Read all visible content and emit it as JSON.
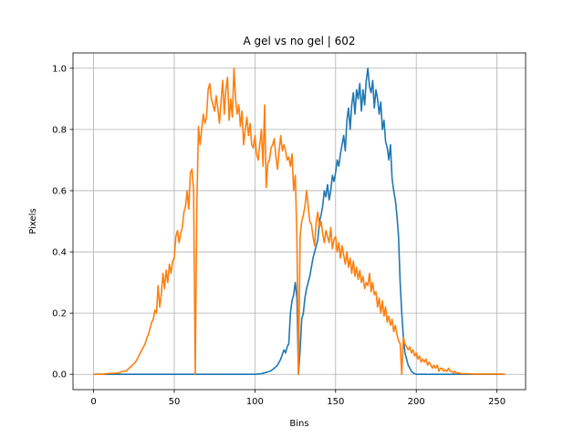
{
  "chart_data": {
    "type": "line",
    "title": "A gel vs no gel | 602",
    "xlabel": "Bins",
    "ylabel": "Pixels",
    "xlim": [
      -12.75,
      267.75
    ],
    "ylim": [
      -0.05,
      1.05
    ],
    "xticks": [
      0,
      50,
      100,
      150,
      200,
      250
    ],
    "yticks": [
      0.0,
      0.2,
      0.4,
      0.6,
      0.8,
      1.0
    ],
    "xtick_labels": [
      "0",
      "50",
      "100",
      "150",
      "200",
      "250"
    ],
    "ytick_labels": [
      "0.0",
      "0.2",
      "0.4",
      "0.6",
      "0.8",
      "1.0"
    ],
    "grid": true,
    "series": [
      {
        "color": "#1f77b4",
        "points": [
          [
            0,
            0
          ],
          [
            100,
            0
          ],
          [
            104,
            0.002
          ],
          [
            106,
            0.005
          ],
          [
            108,
            0.008
          ],
          [
            110,
            0.012
          ],
          [
            112,
            0.02
          ],
          [
            114,
            0.03
          ],
          [
            116,
            0.05
          ],
          [
            118,
            0.08
          ],
          [
            119,
            0.07
          ],
          [
            120,
            0.09
          ],
          [
            121,
            0.1
          ],
          [
            122,
            0.2
          ],
          [
            123,
            0.24
          ],
          [
            124,
            0.26
          ],
          [
            125,
            0.3
          ],
          [
            126,
            0.25
          ],
          [
            127,
            0.0
          ],
          [
            128,
            0.08
          ],
          [
            129,
            0.18
          ],
          [
            130,
            0.2
          ],
          [
            131,
            0.25
          ],
          [
            132,
            0.28
          ],
          [
            133,
            0.3
          ],
          [
            134,
            0.32
          ],
          [
            135,
            0.35
          ],
          [
            136,
            0.38
          ],
          [
            137,
            0.4
          ],
          [
            138,
            0.42
          ],
          [
            139,
            0.44
          ],
          [
            140,
            0.5
          ],
          [
            141,
            0.52
          ],
          [
            142,
            0.55
          ],
          [
            143,
            0.6
          ],
          [
            144,
            0.58
          ],
          [
            145,
            0.62
          ],
          [
            146,
            0.57
          ],
          [
            147,
            0.6
          ],
          [
            148,
            0.65
          ],
          [
            149,
            0.63
          ],
          [
            150,
            0.66
          ],
          [
            151,
            0.7
          ],
          [
            152,
            0.68
          ],
          [
            153,
            0.72
          ],
          [
            154,
            0.75
          ],
          [
            155,
            0.78
          ],
          [
            156,
            0.73
          ],
          [
            157,
            0.83
          ],
          [
            158,
            0.87
          ],
          [
            159,
            0.8
          ],
          [
            160,
            0.88
          ],
          [
            161,
            0.92
          ],
          [
            162,
            0.85
          ],
          [
            163,
            0.93
          ],
          [
            164,
            0.9
          ],
          [
            165,
            0.95
          ],
          [
            166,
            0.86
          ],
          [
            167,
            0.93
          ],
          [
            168,
            0.88
          ],
          [
            169,
            0.96
          ],
          [
            170,
            1.0
          ],
          [
            171,
            0.94
          ],
          [
            172,
            0.92
          ],
          [
            173,
            0.96
          ],
          [
            174,
            0.87
          ],
          [
            175,
            0.93
          ],
          [
            176,
            0.9
          ],
          [
            177,
            0.85
          ],
          [
            178,
            0.89
          ],
          [
            179,
            0.8
          ],
          [
            180,
            0.83
          ],
          [
            181,
            0.76
          ],
          [
            182,
            0.74
          ],
          [
            183,
            0.7
          ],
          [
            184,
            0.75
          ],
          [
            185,
            0.64
          ],
          [
            186,
            0.6
          ],
          [
            187,
            0.57
          ],
          [
            188,
            0.52
          ],
          [
            189,
            0.45
          ],
          [
            190,
            0.3
          ],
          [
            191,
            0.2
          ],
          [
            192,
            0.12
          ],
          [
            193,
            0.07
          ],
          [
            194,
            0.05
          ],
          [
            195,
            0.03
          ],
          [
            196,
            0.02
          ],
          [
            197,
            0.01
          ],
          [
            198,
            0.005
          ],
          [
            200,
            0
          ],
          [
            255,
            0
          ]
        ]
      },
      {
        "color": "#ff7f0e",
        "points": [
          [
            0,
            0
          ],
          [
            5,
            0
          ],
          [
            8,
            0.002
          ],
          [
            10,
            0.003
          ],
          [
            12,
            0.003
          ],
          [
            14,
            0.004
          ],
          [
            16,
            0.005
          ],
          [
            18,
            0.01
          ],
          [
            20,
            0.01
          ],
          [
            22,
            0.02
          ],
          [
            24,
            0.03
          ],
          [
            26,
            0.04
          ],
          [
            27,
            0.05
          ],
          [
            28,
            0.06
          ],
          [
            29,
            0.07
          ],
          [
            30,
            0.08
          ],
          [
            31,
            0.09
          ],
          [
            32,
            0.1
          ],
          [
            33,
            0.12
          ],
          [
            34,
            0.13
          ],
          [
            35,
            0.15
          ],
          [
            36,
            0.17
          ],
          [
            37,
            0.18
          ],
          [
            38,
            0.21
          ],
          [
            39,
            0.2
          ],
          [
            40,
            0.29
          ],
          [
            41,
            0.22
          ],
          [
            42,
            0.26
          ],
          [
            43,
            0.33
          ],
          [
            44,
            0.28
          ],
          [
            45,
            0.34
          ],
          [
            46,
            0.3
          ],
          [
            47,
            0.36
          ],
          [
            48,
            0.33
          ],
          [
            49,
            0.37
          ],
          [
            50,
            0.38
          ],
          [
            51,
            0.45
          ],
          [
            52,
            0.47
          ],
          [
            53,
            0.43
          ],
          [
            54,
            0.46
          ],
          [
            55,
            0.48
          ],
          [
            56,
            0.53
          ],
          [
            57,
            0.55
          ],
          [
            58,
            0.6
          ],
          [
            59,
            0.54
          ],
          [
            60,
            0.66
          ],
          [
            61,
            0.67
          ],
          [
            62,
            0.6
          ],
          [
            63,
            0.0
          ],
          [
            64,
            0.55
          ],
          [
            65,
            0.81
          ],
          [
            66,
            0.75
          ],
          [
            67,
            0.8
          ],
          [
            68,
            0.85
          ],
          [
            69,
            0.82
          ],
          [
            70,
            0.84
          ],
          [
            71,
            0.93
          ],
          [
            72,
            0.95
          ],
          [
            73,
            0.9
          ],
          [
            74,
            0.88
          ],
          [
            75,
            0.86
          ],
          [
            76,
            0.91
          ],
          [
            77,
            0.87
          ],
          [
            78,
            0.82
          ],
          [
            79,
            0.89
          ],
          [
            80,
            0.96
          ],
          [
            81,
            0.85
          ],
          [
            82,
            0.93
          ],
          [
            83,
            0.97
          ],
          [
            84,
            0.83
          ],
          [
            85,
            0.9
          ],
          [
            86,
            0.84
          ],
          [
            87,
            1.0
          ],
          [
            88,
            0.9
          ],
          [
            89,
            0.85
          ],
          [
            90,
            0.88
          ],
          [
            91,
            0.81
          ],
          [
            92,
            0.86
          ],
          [
            93,
            0.75
          ],
          [
            94,
            0.8
          ],
          [
            95,
            0.84
          ],
          [
            96,
            0.78
          ],
          [
            97,
            0.82
          ],
          [
            98,
            0.75
          ],
          [
            99,
            0.74
          ],
          [
            100,
            0.78
          ],
          [
            101,
            0.72
          ],
          [
            102,
            0.7
          ],
          [
            103,
            0.75
          ],
          [
            104,
            0.8
          ],
          [
            105,
            0.68
          ],
          [
            106,
            0.88
          ],
          [
            107,
            0.61
          ],
          [
            108,
            0.69
          ],
          [
            109,
            0.7
          ],
          [
            110,
            0.74
          ],
          [
            111,
            0.75
          ],
          [
            112,
            0.77
          ],
          [
            113,
            0.71
          ],
          [
            114,
            0.67
          ],
          [
            115,
            0.73
          ],
          [
            116,
            0.78
          ],
          [
            117,
            0.73
          ],
          [
            118,
            0.75
          ],
          [
            119,
            0.73
          ],
          [
            120,
            0.7
          ],
          [
            121,
            0.71
          ],
          [
            122,
            0.68
          ],
          [
            123,
            0.72
          ],
          [
            124,
            0.6
          ],
          [
            125,
            0.65
          ],
          [
            126,
            0.45
          ],
          [
            127,
            0.0
          ],
          [
            128,
            0.45
          ],
          [
            129,
            0.5
          ],
          [
            130,
            0.52
          ],
          [
            131,
            0.55
          ],
          [
            132,
            0.6
          ],
          [
            133,
            0.55
          ],
          [
            134,
            0.5
          ],
          [
            135,
            0.49
          ],
          [
            136,
            0.45
          ],
          [
            137,
            0.42
          ],
          [
            138,
            0.5
          ],
          [
            139,
            0.53
          ],
          [
            140,
            0.48
          ],
          [
            141,
            0.5
          ],
          [
            142,
            0.46
          ],
          [
            143,
            0.43
          ],
          [
            144,
            0.47
          ],
          [
            145,
            0.45
          ],
          [
            146,
            0.43
          ],
          [
            147,
            0.48
          ],
          [
            148,
            0.41
          ],
          [
            149,
            0.44
          ],
          [
            150,
            0.45
          ],
          [
            151,
            0.4
          ],
          [
            152,
            0.43
          ],
          [
            153,
            0.38
          ],
          [
            154,
            0.42
          ],
          [
            155,
            0.39
          ],
          [
            156,
            0.36
          ],
          [
            157,
            0.4
          ],
          [
            158,
            0.35
          ],
          [
            159,
            0.38
          ],
          [
            160,
            0.33
          ],
          [
            161,
            0.37
          ],
          [
            162,
            0.32
          ],
          [
            163,
            0.35
          ],
          [
            164,
            0.31
          ],
          [
            165,
            0.34
          ],
          [
            166,
            0.3
          ],
          [
            167,
            0.32
          ],
          [
            168,
            0.28
          ],
          [
            169,
            0.3
          ],
          [
            170,
            0.29
          ],
          [
            171,
            0.33
          ],
          [
            172,
            0.27
          ],
          [
            173,
            0.3
          ],
          [
            174,
            0.26
          ],
          [
            175,
            0.27
          ],
          [
            176,
            0.22
          ],
          [
            177,
            0.25
          ],
          [
            178,
            0.2
          ],
          [
            179,
            0.24
          ],
          [
            180,
            0.19
          ],
          [
            181,
            0.22
          ],
          [
            182,
            0.17
          ],
          [
            183,
            0.19
          ],
          [
            184,
            0.16
          ],
          [
            185,
            0.18
          ],
          [
            186,
            0.14
          ],
          [
            187,
            0.16
          ],
          [
            188,
            0.13
          ],
          [
            189,
            0.11
          ],
          [
            190,
            0.1
          ],
          [
            191,
            0.0
          ],
          [
            192,
            0.12
          ],
          [
            193,
            0.1
          ],
          [
            194,
            0.09
          ],
          [
            195,
            0.08
          ],
          [
            196,
            0.09
          ],
          [
            197,
            0.07
          ],
          [
            198,
            0.08
          ],
          [
            199,
            0.06
          ],
          [
            200,
            0.07
          ],
          [
            201,
            0.05
          ],
          [
            202,
            0.06
          ],
          [
            203,
            0.04
          ],
          [
            204,
            0.05
          ],
          [
            205,
            0.04
          ],
          [
            206,
            0.05
          ],
          [
            207,
            0.03
          ],
          [
            208,
            0.04
          ],
          [
            209,
            0.03
          ],
          [
            210,
            0.02
          ],
          [
            211,
            0.03
          ],
          [
            212,
            0.02
          ],
          [
            213,
            0.03
          ],
          [
            214,
            0.01
          ],
          [
            215,
            0.02
          ],
          [
            216,
            0.02
          ],
          [
            217,
            0.01
          ],
          [
            218,
            0.015
          ],
          [
            219,
            0.01
          ],
          [
            220,
            0.02
          ],
          [
            221,
            0.01
          ],
          [
            222,
            0.01
          ],
          [
            223,
            0.005
          ],
          [
            224,
            0.01
          ],
          [
            225,
            0.003
          ],
          [
            226,
            0.005
          ],
          [
            228,
            0.002
          ],
          [
            230,
            0.002
          ],
          [
            235,
            0.001
          ],
          [
            240,
            0.001
          ],
          [
            245,
            0.001
          ],
          [
            250,
            0.001
          ],
          [
            255,
            0
          ]
        ]
      }
    ]
  }
}
